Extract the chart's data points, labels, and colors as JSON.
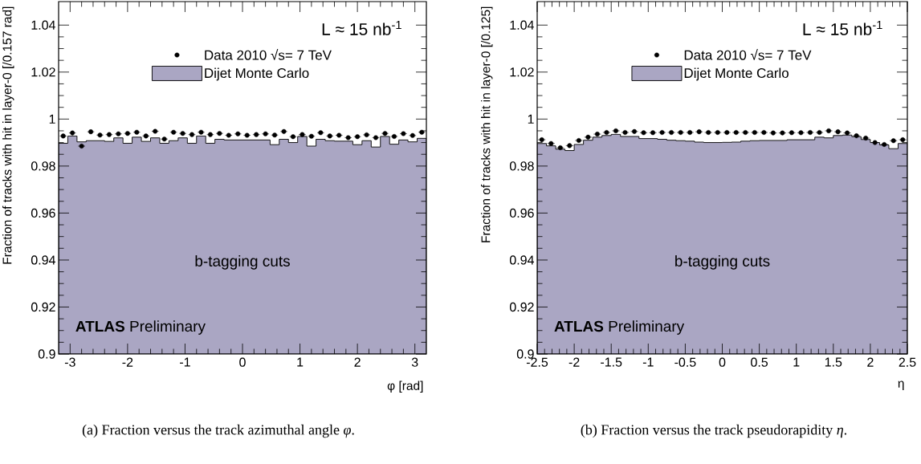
{
  "chart_data": [
    {
      "type": "histogram",
      "xlabel": "φ [rad]",
      "ylabel": "Fraction of tracks with hit in layer-0 [/0.157 rad]",
      "bins": [
        -3.2,
        -3.04,
        -2.88,
        -2.72,
        -2.56,
        -2.4,
        -2.24,
        -2.08,
        -1.92,
        -1.76,
        -1.6,
        -1.44,
        -1.28,
        -1.12,
        -0.96,
        -0.8,
        -0.64,
        -0.48,
        -0.32,
        -0.16,
        0,
        0.16,
        0.32,
        0.48,
        0.64,
        0.8,
        0.96,
        1.12,
        1.28,
        1.44,
        1.6,
        1.76,
        1.92,
        2.08,
        2.24,
        2.4,
        2.56,
        2.72,
        2.88,
        3.04,
        3.2
      ],
      "series": [
        {
          "name": "Dijet Monte Carlo",
          "color": "#aaa6c3",
          "values": [
            0.9897,
            0.9928,
            0.9903,
            0.9908,
            0.9908,
            0.9905,
            0.992,
            0.9897,
            0.9923,
            0.9905,
            0.992,
            0.9897,
            0.9908,
            0.992,
            0.9897,
            0.9928,
            0.9897,
            0.9914,
            0.9911,
            0.9911,
            0.9911,
            0.9911,
            0.9911,
            0.9891,
            0.9914,
            0.99,
            0.9926,
            0.9885,
            0.9914,
            0.9908,
            0.9906,
            0.9906,
            0.9891,
            0.9908,
            0.9881,
            0.9926,
            0.9893,
            0.9911,
            0.9903,
            0.9918
          ]
        },
        {
          "type": "scatter",
          "name": "Data 2010 √s= 7 TeV",
          "color": "#000000",
          "x": [
            -3.12,
            -2.96,
            -2.8,
            -2.64,
            -2.48,
            -2.32,
            -2.16,
            -2,
            -1.84,
            -1.68,
            -1.52,
            -1.36,
            -1.2,
            -1.04,
            -0.88,
            -0.72,
            -0.56,
            -0.4,
            -0.24,
            -0.08,
            0.08,
            0.24,
            0.4,
            0.56,
            0.72,
            0.88,
            1.04,
            1.2,
            1.36,
            1.52,
            1.68,
            1.84,
            2,
            2.16,
            2.32,
            2.48,
            2.64,
            2.8,
            2.96,
            3.12
          ],
          "values": [
            0.9928,
            0.9941,
            0.9885,
            0.9946,
            0.9932,
            0.9934,
            0.9937,
            0.9939,
            0.9944,
            0.9928,
            0.9948,
            0.9915,
            0.9944,
            0.9939,
            0.9934,
            0.9944,
            0.9934,
            0.9939,
            0.9931,
            0.9937,
            0.9931,
            0.9934,
            0.9937,
            0.9932,
            0.9947,
            0.9925,
            0.9934,
            0.9927,
            0.9942,
            0.9928,
            0.9931,
            0.9921,
            0.9925,
            0.9933,
            0.9921,
            0.9939,
            0.9926,
            0.9938,
            0.993,
            0.9944
          ],
          "xerrors": [
            0.06,
            0.06,
            0.06,
            0.06,
            0.06,
            0.06,
            0.06,
            0.06,
            0.06,
            0.06,
            0.06,
            0.06,
            0.06,
            0.06,
            0.06,
            0.06,
            0.06,
            0.06,
            0.06,
            0.06,
            0.06,
            0.06,
            0.06,
            0.06,
            0.06,
            0.06,
            0.06,
            0.06,
            0.06,
            0.06,
            0.06,
            0.06,
            0.06,
            0.06,
            0.06,
            0.06,
            0.06,
            0.06,
            0.06,
            0.06
          ]
        }
      ],
      "marker": "circle",
      "legend": "top",
      "xlim": [
        -3.2,
        3.2
      ],
      "ylim": [
        0.9,
        1.05
      ],
      "xticks": [
        -3,
        -2,
        -1,
        0,
        1,
        2,
        3
      ],
      "yticks": [
        0.9,
        0.92,
        0.94,
        0.96,
        0.98,
        1,
        1.02,
        1.04
      ],
      "annotations": [
        "L ≈ 15 nb$^{-1}$",
        "b-tagging cuts",
        "**ATLAS** Preliminary",
        "(a)  Fraction versus the track azimuthal angle *φ*."
      ]
    },
    {
      "type": "histogram",
      "xlabel": "η",
      "ylabel": "Fraction of tracks with hit in layer-0 [/0.125]",
      "bins": [
        -2.5,
        -2.375,
        -2.25,
        -2.125,
        -2,
        -1.875,
        -1.75,
        -1.625,
        -1.5,
        -1.375,
        -1.25,
        -1.125,
        -1,
        -0.875,
        -0.75,
        -0.625,
        -0.5,
        -0.375,
        -0.25,
        -0.125,
        0,
        0.125,
        0.25,
        0.375,
        0.5,
        0.625,
        0.75,
        0.875,
        1,
        1.125,
        1.25,
        1.375,
        1.5,
        1.625,
        1.75,
        1.875,
        2,
        2.125,
        2.25,
        2.375,
        2.5
      ],
      "series": [
        {
          "name": "Dijet Monte Carlo",
          "color": "#aaa6c3",
          "values": [
            0.9896,
            0.9886,
            0.9872,
            0.9866,
            0.9892,
            0.991,
            0.9923,
            0.993,
            0.9935,
            0.9926,
            0.9926,
            0.9917,
            0.9917,
            0.9914,
            0.991,
            0.9908,
            0.9906,
            0.9902,
            0.99,
            0.99,
            0.9901,
            0.9902,
            0.9906,
            0.9908,
            0.9909,
            0.9909,
            0.9909,
            0.9912,
            0.9912,
            0.9912,
            0.9923,
            0.992,
            0.993,
            0.9932,
            0.9925,
            0.9913,
            0.99,
            0.989,
            0.9874,
            0.9896
          ]
        },
        {
          "type": "scatter",
          "name": "Data 2010 √s= 7 TeV",
          "color": "#000000",
          "x": [
            -2.4375,
            -2.3125,
            -2.1875,
            -2.0625,
            -1.9375,
            -1.8125,
            -1.6875,
            -1.5625,
            -1.4375,
            -1.3125,
            -1.1875,
            -1.0625,
            -0.9375,
            -0.8125,
            -0.6875,
            -0.5625,
            -0.4375,
            -0.3125,
            -0.1875,
            -0.0625,
            0.0625,
            0.1875,
            0.3125,
            0.4375,
            0.5625,
            0.6875,
            0.8125,
            0.9375,
            1.0625,
            1.1875,
            1.3125,
            1.4375,
            1.5625,
            1.6875,
            1.8125,
            1.9375,
            2.0625,
            2.1875,
            2.3125,
            2.4375
          ],
          "values": [
            0.9912,
            0.9896,
            0.9878,
            0.9887,
            0.9909,
            0.9923,
            0.9936,
            0.9943,
            0.995,
            0.9943,
            0.9947,
            0.9942,
            0.9942,
            0.9943,
            0.9943,
            0.9943,
            0.9943,
            0.9946,
            0.9943,
            0.9943,
            0.9943,
            0.9943,
            0.9943,
            0.9943,
            0.9943,
            0.9941,
            0.9941,
            0.9942,
            0.9942,
            0.9943,
            0.9943,
            0.995,
            0.9946,
            0.9941,
            0.9929,
            0.9919,
            0.99,
            0.9892,
            0.9908,
            0.9912
          ],
          "xerrors": [
            0.05,
            0.05,
            0.05,
            0.05,
            0.05,
            0.05,
            0.05,
            0.05,
            0.05,
            0.05,
            0.05,
            0.05,
            0.05,
            0.05,
            0.05,
            0.05,
            0.05,
            0.05,
            0.05,
            0.05,
            0.05,
            0.05,
            0.05,
            0.05,
            0.05,
            0.05,
            0.05,
            0.05,
            0.05,
            0.05,
            0.05,
            0.05,
            0.05,
            0.05,
            0.05,
            0.05,
            0.05,
            0.05,
            0.05,
            0.05
          ]
        }
      ],
      "marker": "circle",
      "legend": "top",
      "xlim": [
        -2.5,
        2.5
      ],
      "ylim": [
        0.9,
        1.05
      ],
      "xticks": [
        -2.5,
        -2,
        -1.5,
        -1,
        -0.5,
        0,
        0.5,
        1,
        1.5,
        2,
        2.5
      ],
      "yticks": [
        0.9,
        0.92,
        0.94,
        0.96,
        0.98,
        1,
        1.02,
        1.04
      ],
      "annotations": [
        "L ≈ 15 nb$^{-1}$",
        "b-tagging cuts",
        "**ATLAS** Preliminary",
        "(b)  Fraction versus the track pseudorapidity *η*."
      ]
    }
  ]
}
